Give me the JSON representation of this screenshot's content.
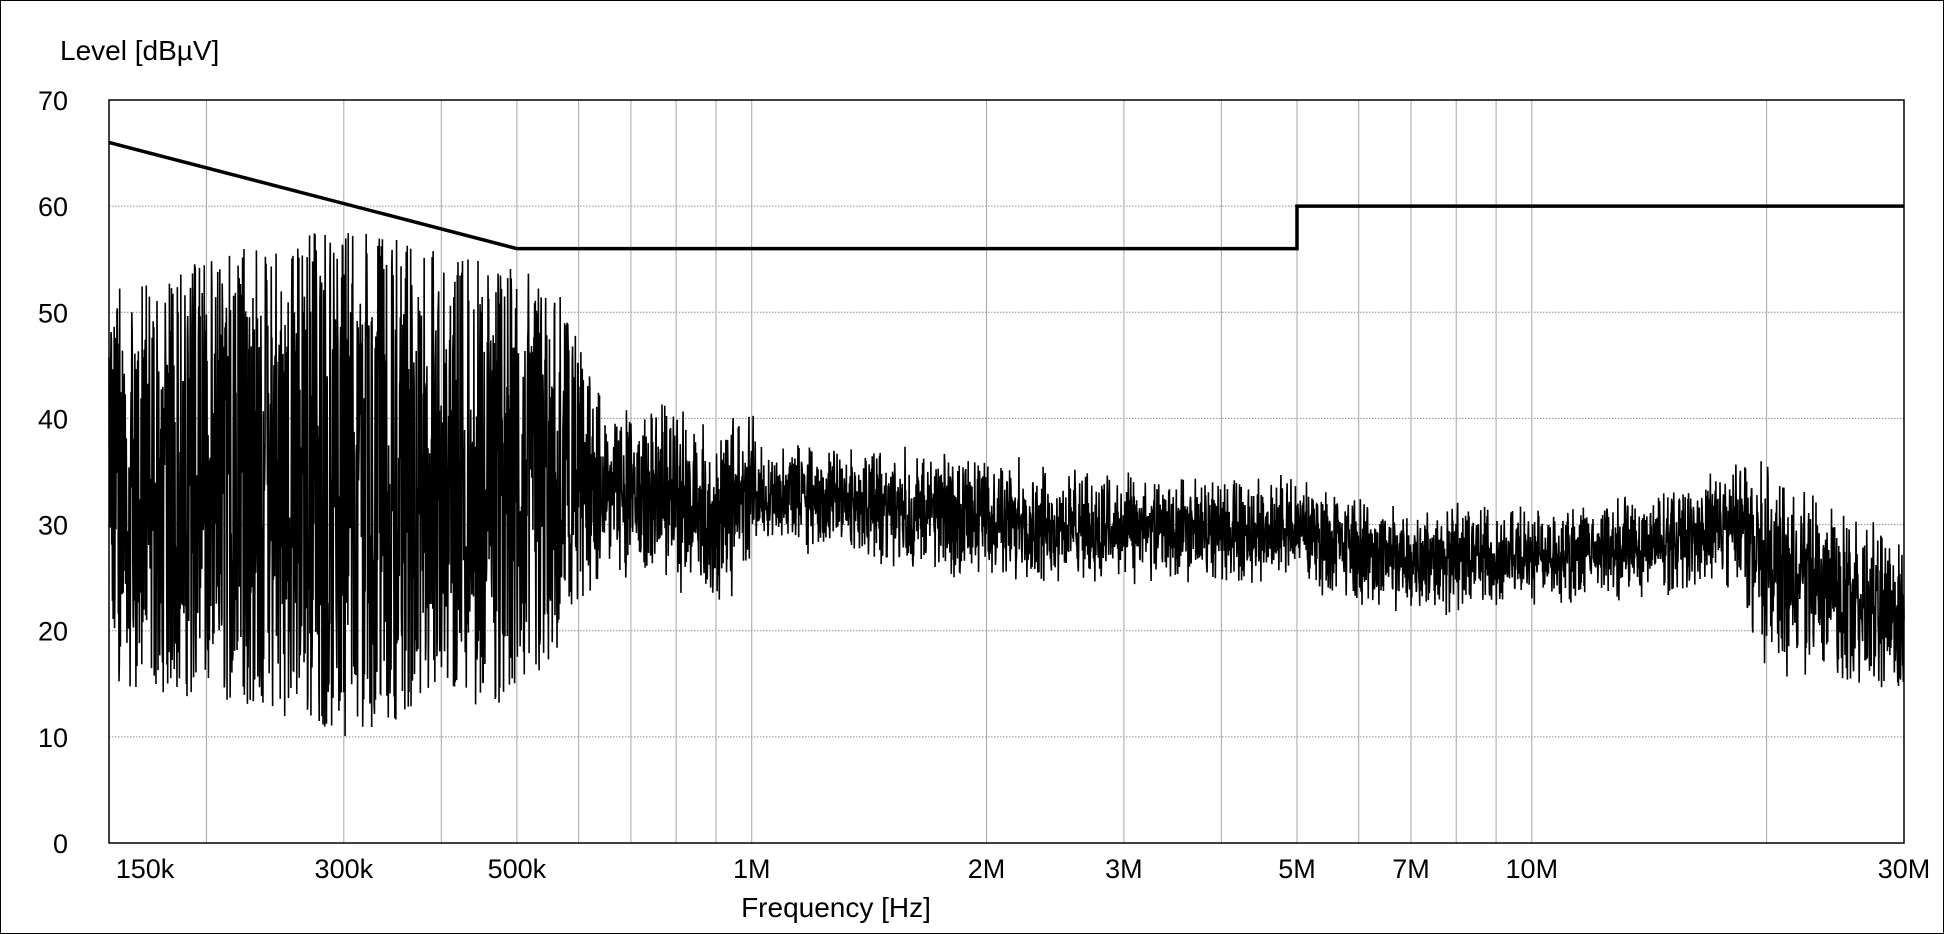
{
  "chart_data": {
    "type": "line",
    "ylabel": "Level [dBµV]",
    "xlabel": "Frequency [Hz]",
    "x_scale": "log",
    "xlim": [
      150000,
      30000000
    ],
    "ylim": [
      0,
      70
    ],
    "grid": true,
    "y_ticks": [
      0,
      10,
      20,
      30,
      40,
      50,
      60,
      70
    ],
    "x_ticks": [
      {
        "value": 150000,
        "label": "150k"
      },
      {
        "value": 300000,
        "label": "300k"
      },
      {
        "value": 500000,
        "label": "500k"
      },
      {
        "value": 1000000,
        "label": "1M"
      },
      {
        "value": 2000000,
        "label": "2M"
      },
      {
        "value": 3000000,
        "label": "3M"
      },
      {
        "value": 5000000,
        "label": "5M"
      },
      {
        "value": 7000000,
        "label": "7M"
      },
      {
        "value": 10000000,
        "label": "10M"
      },
      {
        "value": 30000000,
        "label": "30M"
      }
    ],
    "series": [
      {
        "name": "",
        "style": "limit",
        "x": [
          150000,
          500000,
          500000,
          5000000,
          5000000,
          30000000
        ],
        "y": [
          66,
          56,
          56,
          56,
          60,
          60
        ]
      },
      {
        "name": "",
        "style": "noise",
        "envelope": [
          {
            "x": 150000,
            "lo": 15,
            "hi": 52
          },
          {
            "x": 180000,
            "lo": 14,
            "hi": 54
          },
          {
            "x": 250000,
            "lo": 12,
            "hi": 57
          },
          {
            "x": 300000,
            "lo": 10,
            "hi": 58
          },
          {
            "x": 400000,
            "lo": 13,
            "hi": 56
          },
          {
            "x": 500000,
            "lo": 13,
            "hi": 54
          },
          {
            "x": 560000,
            "lo": 16,
            "hi": 53
          },
          {
            "x": 600000,
            "lo": 20,
            "hi": 47
          },
          {
            "x": 640000,
            "lo": 25,
            "hi": 42
          },
          {
            "x": 800000,
            "lo": 23,
            "hi": 42
          },
          {
            "x": 880000,
            "lo": 20,
            "hi": 40
          },
          {
            "x": 1000000,
            "lo": 25,
            "hi": 42
          },
          {
            "x": 1020000,
            "lo": 28,
            "hi": 38
          },
          {
            "x": 1200000,
            "lo": 27,
            "hi": 38
          },
          {
            "x": 2000000,
            "lo": 24,
            "hi": 37
          },
          {
            "x": 3000000,
            "lo": 24,
            "hi": 35
          },
          {
            "x": 5000000,
            "lo": 24,
            "hi": 35
          },
          {
            "x": 6000000,
            "lo": 22,
            "hi": 33
          },
          {
            "x": 7000000,
            "lo": 21,
            "hi": 33
          },
          {
            "x": 10000000,
            "lo": 22,
            "hi": 32
          },
          {
            "x": 15000000,
            "lo": 23,
            "hi": 34
          },
          {
            "x": 18000000,
            "lo": 24,
            "hi": 36
          },
          {
            "x": 19000000,
            "lo": 20,
            "hi": 38
          },
          {
            "x": 20000000,
            "lo": 16,
            "hi": 36
          },
          {
            "x": 25000000,
            "lo": 14,
            "hi": 32
          },
          {
            "x": 30000000,
            "lo": 13,
            "hi": 30
          }
        ]
      }
    ]
  }
}
